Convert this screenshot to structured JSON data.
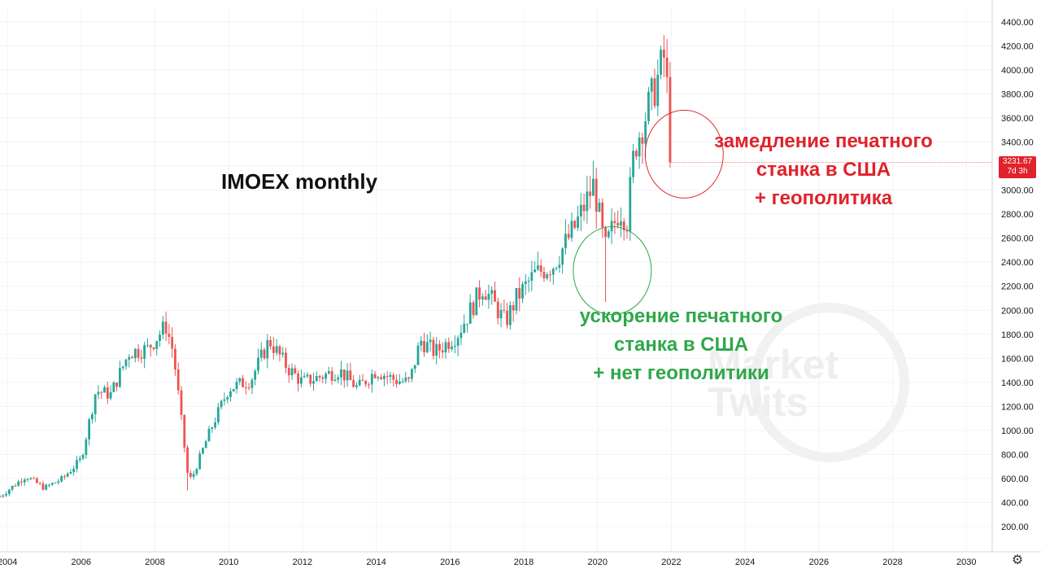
{
  "chart_data": {
    "type": "candlestick",
    "title": "IMOEX monthly",
    "interval": "monthly",
    "ylim": [
      0,
      4400
    ],
    "y_ticks": [
      "200.00",
      "400.00",
      "600.00",
      "800.00",
      "1000.00",
      "1200.00",
      "1400.00",
      "1600.00",
      "1800.00",
      "2000.00",
      "2200.00",
      "2400.00",
      "2600.00",
      "2800.00",
      "3000.00",
      "3200.00",
      "3400.00",
      "3600.00",
      "3800.00",
      "4000.00",
      "4200.00",
      "4400.00"
    ],
    "x_ticks": [
      "2004",
      "2006",
      "2008",
      "2010",
      "2012",
      "2014",
      "2016",
      "2018",
      "2020",
      "2022",
      "2024",
      "2026",
      "2028",
      "2030"
    ],
    "xlim": [
      2003.8,
      2030.7
    ],
    "close_path": [
      [
        2003.8,
        450
      ],
      [
        2004.5,
        620
      ],
      [
        2005.0,
        520
      ],
      [
        2005.5,
        600
      ],
      [
        2006.0,
        760
      ],
      [
        2006.4,
        1330
      ],
      [
        2006.8,
        1300
      ],
      [
        2007.3,
        1650
      ],
      [
        2007.8,
        1680
      ],
      [
        2008.3,
        1870
      ],
      [
        2008.5,
        1650
      ],
      [
        2008.9,
        600
      ],
      [
        2009.0,
        600
      ],
      [
        2009.5,
        1000
      ],
      [
        2010.0,
        1350
      ],
      [
        2010.6,
        1420
      ],
      [
        2011.1,
        1750
      ],
      [
        2011.6,
        1520
      ],
      [
        2012.0,
        1400
      ],
      [
        2012.5,
        1450
      ],
      [
        2013.0,
        1500
      ],
      [
        2013.5,
        1350
      ],
      [
        2014.0,
        1500
      ],
      [
        2014.5,
        1420
      ],
      [
        2014.9,
        1400
      ],
      [
        2015.2,
        1750
      ],
      [
        2015.6,
        1650
      ],
      [
        2016.2,
        1800
      ],
      [
        2016.9,
        2200
      ],
      [
        2017.5,
        1900
      ],
      [
        2017.8,
        2100
      ],
      [
        2018.3,
        2300
      ],
      [
        2018.8,
        2380
      ],
      [
        2019.4,
        2700
      ],
      [
        2019.9,
        3050
      ],
      [
        2020.2,
        2500
      ],
      [
        2020.6,
        2850
      ],
      [
        2020.8,
        2750
      ],
      [
        2021.0,
        3350
      ],
      [
        2021.5,
        3800
      ],
      [
        2021.8,
        4100
      ],
      [
        2021.9,
        3800
      ],
      [
        2022.0,
        3231.67
      ]
    ],
    "last_price": "3231.67",
    "last_price_note": "7d 3h",
    "annotations": [
      {
        "lines": [
          "замедление печатного",
          "станка в США",
          "+ геополитика"
        ],
        "color": "#e0222b",
        "circle_center": [
          2022.35,
          3300
        ]
      },
      {
        "lines": [
          "ускорение печатного",
          "станка в США",
          "+ нет геополитики"
        ],
        "color": "#2ea84a",
        "circle_center": [
          2020.4,
          2330
        ]
      }
    ],
    "colors": {
      "up": "#26a69a",
      "down": "#ef5350",
      "red_annotation": "#e0222b",
      "green_annotation": "#2ea84a",
      "grid": "#f0f3fa"
    },
    "grid": true
  },
  "watermark": {
    "line1": "Market",
    "line2": "Twits"
  },
  "icons": {
    "settings": "gear-icon"
  }
}
